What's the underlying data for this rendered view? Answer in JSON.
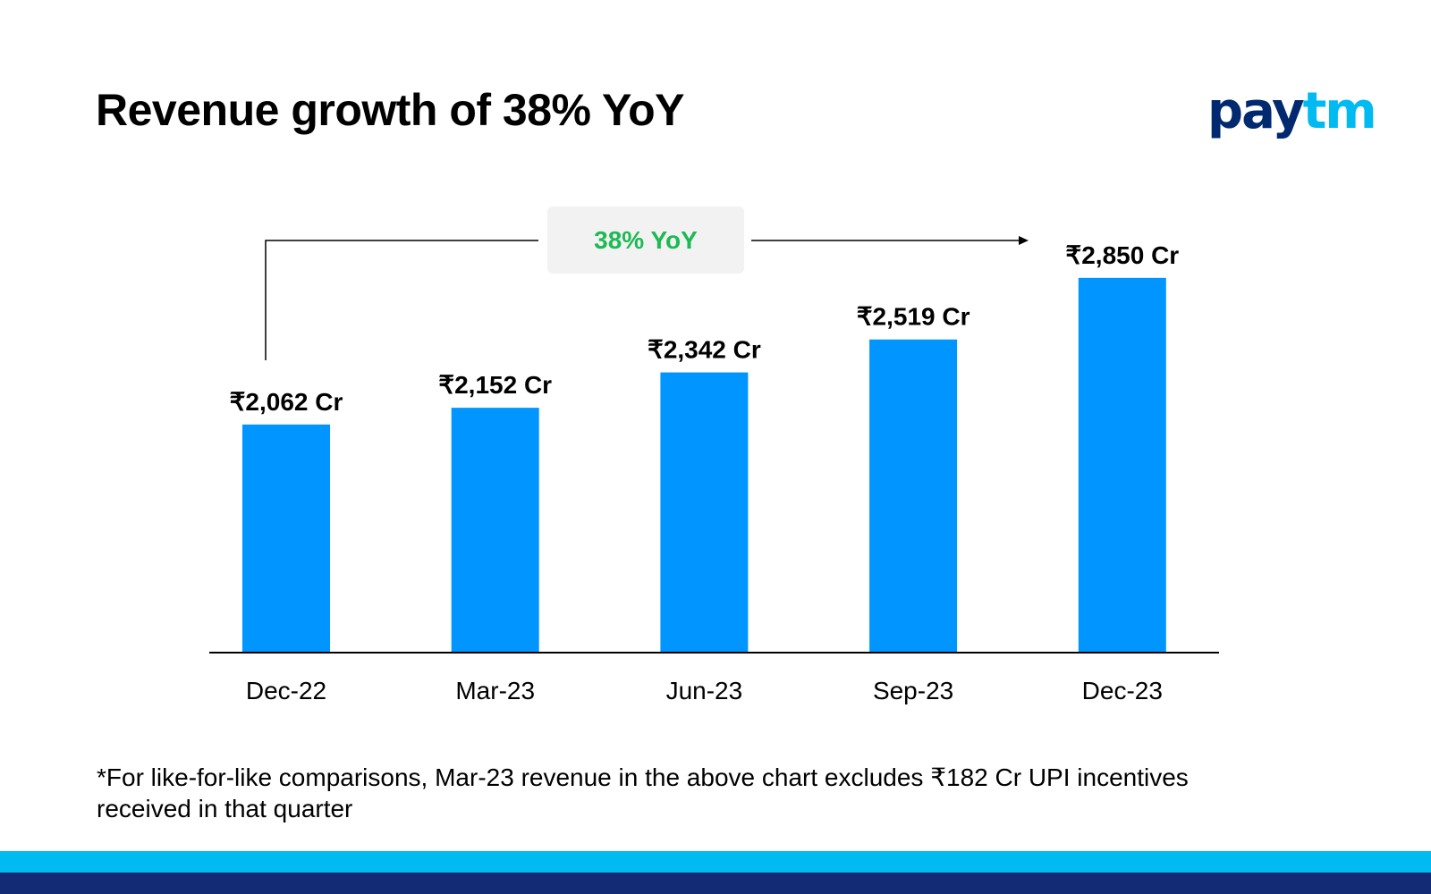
{
  "title": "Revenue growth of 38% YoY",
  "logo": {
    "text_a": "pay",
    "text_b": "tm",
    "colors": [
      "#002970",
      "#00BAF2"
    ]
  },
  "chart_data": {
    "type": "bar",
    "categories": [
      "Dec-22",
      "Mar-23",
      "Jun-23",
      "Sep-23",
      "Dec-23"
    ],
    "values": [
      2062,
      2152,
      2342,
      2519,
      2850
    ],
    "data_labels": [
      "₹2,062 Cr",
      "₹2,152 Cr",
      "₹2,342 Cr",
      "₹2,519 Cr",
      "₹2,850 Cr"
    ],
    "unit": "₹ Cr",
    "bar_color": "#0095FF",
    "annotation": {
      "text": "38% YoY",
      "color": "#1DB954",
      "from": "Dec-22",
      "to": "Dec-23"
    },
    "grid": false,
    "title": "Revenue growth of 38% YoY"
  },
  "footnote": "*For like-for-like comparisons, Mar-23 revenue in the above chart excludes ₹182 Cr UPI incentives received in that quarter",
  "colors": {
    "stripe_light": "#00BAF2",
    "stripe_dark": "#132A75"
  }
}
